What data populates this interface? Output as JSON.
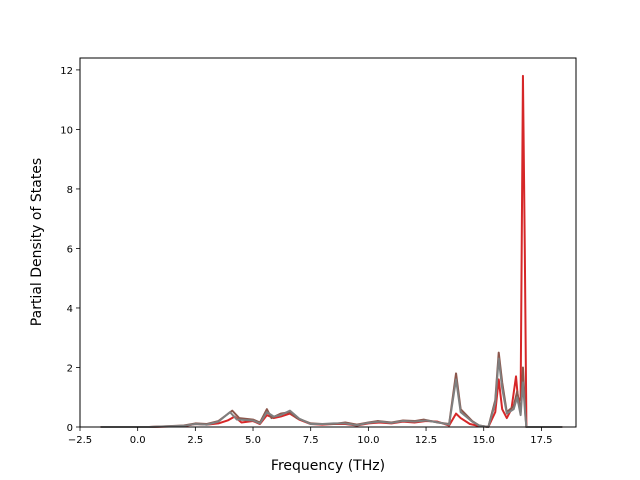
{
  "chart_data": {
    "type": "line",
    "title": "",
    "xlabel": "Frequency (THz)",
    "ylabel": "Partial Density of States",
    "xlim": [
      -2.5,
      19.0
    ],
    "ylim": [
      0,
      12.4
    ],
    "x_ticks": [
      -2.5,
      0.0,
      2.5,
      5.0,
      7.5,
      10.0,
      12.5,
      15.0,
      17.5
    ],
    "x_tick_labels": [
      "−2.5",
      "0.0",
      "2.5",
      "5.0",
      "7.5",
      "10.0",
      "12.5",
      "15.0",
      "17.5"
    ],
    "y_ticks": [
      0,
      2,
      4,
      6,
      8,
      10,
      12
    ],
    "y_tick_labels": [
      "0",
      "2",
      "4",
      "6",
      "8",
      "10",
      "12"
    ],
    "grid": false,
    "legend": "none",
    "series": [
      {
        "color": "#d62728",
        "points": [
          [
            -1.6,
            0
          ],
          [
            0.5,
            0
          ],
          [
            2.0,
            0.03
          ],
          [
            2.5,
            0.1
          ],
          [
            3.0,
            0.08
          ],
          [
            3.5,
            0.12
          ],
          [
            3.9,
            0.22
          ],
          [
            4.2,
            0.35
          ],
          [
            4.5,
            0.15
          ],
          [
            5.0,
            0.2
          ],
          [
            5.3,
            0.1
          ],
          [
            5.6,
            0.4
          ],
          [
            5.9,
            0.3
          ],
          [
            6.2,
            0.35
          ],
          [
            6.6,
            0.45
          ],
          [
            7.0,
            0.25
          ],
          [
            7.5,
            0.1
          ],
          [
            8.0,
            0.08
          ],
          [
            8.5,
            0.1
          ],
          [
            9.0,
            0.1
          ],
          [
            9.5,
            0.05
          ],
          [
            10.0,
            0.12
          ],
          [
            10.5,
            0.15
          ],
          [
            11.0,
            0.12
          ],
          [
            11.5,
            0.18
          ],
          [
            12.0,
            0.15
          ],
          [
            12.5,
            0.2
          ],
          [
            13.0,
            0.18
          ],
          [
            13.5,
            0.05
          ],
          [
            13.8,
            0.45
          ],
          [
            14.0,
            0.3
          ],
          [
            14.4,
            0.1
          ],
          [
            14.7,
            0.05
          ],
          [
            15.2,
            0.0
          ],
          [
            15.5,
            0.5
          ],
          [
            15.65,
            1.6
          ],
          [
            15.8,
            0.6
          ],
          [
            16.0,
            0.3
          ],
          [
            16.2,
            0.6
          ],
          [
            16.4,
            1.7
          ],
          [
            16.5,
            0.8
          ],
          [
            16.6,
            1.0
          ],
          [
            16.7,
            11.8
          ],
          [
            16.78,
            6.0
          ],
          [
            16.85,
            0
          ],
          [
            18.4,
            0
          ]
        ]
      },
      {
        "color": "#8c564b",
        "points": [
          [
            -1.6,
            0
          ],
          [
            0.5,
            0
          ],
          [
            2.0,
            0.05
          ],
          [
            2.5,
            0.12
          ],
          [
            3.0,
            0.1
          ],
          [
            3.5,
            0.2
          ],
          [
            4.1,
            0.55
          ],
          [
            4.4,
            0.3
          ],
          [
            5.0,
            0.25
          ],
          [
            5.3,
            0.15
          ],
          [
            5.6,
            0.6
          ],
          [
            5.8,
            0.3
          ],
          [
            6.2,
            0.45
          ],
          [
            6.6,
            0.5
          ],
          [
            6.9,
            0.3
          ],
          [
            7.5,
            0.12
          ],
          [
            8.0,
            0.1
          ],
          [
            8.5,
            0.1
          ],
          [
            9.0,
            0.15
          ],
          [
            9.5,
            0.08
          ],
          [
            10.0,
            0.15
          ],
          [
            10.4,
            0.2
          ],
          [
            11.0,
            0.15
          ],
          [
            11.5,
            0.22
          ],
          [
            12.0,
            0.2
          ],
          [
            12.4,
            0.25
          ],
          [
            13.0,
            0.15
          ],
          [
            13.5,
            0.1
          ],
          [
            13.8,
            1.8
          ],
          [
            14.0,
            0.6
          ],
          [
            14.5,
            0.2
          ],
          [
            14.8,
            0.05
          ],
          [
            15.2,
            0.0
          ],
          [
            15.5,
            0.9
          ],
          [
            15.65,
            2.5
          ],
          [
            15.8,
            1.5
          ],
          [
            16.0,
            0.5
          ],
          [
            16.3,
            0.7
          ],
          [
            16.45,
            1.2
          ],
          [
            16.6,
            0.5
          ],
          [
            16.7,
            2.0
          ],
          [
            16.8,
            0.5
          ],
          [
            16.85,
            0
          ],
          [
            18.4,
            0
          ]
        ]
      },
      {
        "color": "#7f7f7f",
        "points": [
          [
            -1.6,
            0
          ],
          [
            0.5,
            0
          ],
          [
            2.0,
            0.04
          ],
          [
            2.5,
            0.1
          ],
          [
            3.0,
            0.08
          ],
          [
            3.5,
            0.18
          ],
          [
            4.0,
            0.5
          ],
          [
            4.3,
            0.25
          ],
          [
            5.0,
            0.22
          ],
          [
            5.3,
            0.12
          ],
          [
            5.6,
            0.5
          ],
          [
            5.9,
            0.35
          ],
          [
            6.2,
            0.4
          ],
          [
            6.6,
            0.55
          ],
          [
            7.0,
            0.28
          ],
          [
            7.5,
            0.1
          ],
          [
            8.0,
            0.1
          ],
          [
            8.5,
            0.12
          ],
          [
            9.0,
            0.12
          ],
          [
            9.5,
            0.06
          ],
          [
            10.0,
            0.14
          ],
          [
            10.5,
            0.18
          ],
          [
            11.0,
            0.14
          ],
          [
            11.5,
            0.2
          ],
          [
            12.0,
            0.18
          ],
          [
            12.5,
            0.22
          ],
          [
            13.0,
            0.16
          ],
          [
            13.5,
            0.08
          ],
          [
            13.8,
            1.6
          ],
          [
            14.0,
            0.5
          ],
          [
            14.5,
            0.18
          ],
          [
            14.8,
            0.05
          ],
          [
            15.2,
            0.0
          ],
          [
            15.5,
            0.8
          ],
          [
            15.65,
            2.3
          ],
          [
            15.8,
            1.3
          ],
          [
            16.0,
            0.45
          ],
          [
            16.3,
            0.6
          ],
          [
            16.45,
            1.0
          ],
          [
            16.6,
            0.4
          ],
          [
            16.7,
            1.5
          ],
          [
            16.8,
            0.4
          ],
          [
            16.85,
            0
          ],
          [
            18.4,
            0
          ]
        ]
      }
    ]
  }
}
